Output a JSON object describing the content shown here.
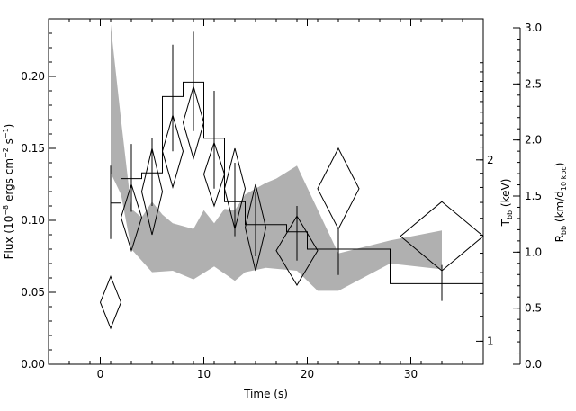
{
  "chart_data": {
    "type": "line",
    "xlabel": "Time (s)",
    "xlim": [
      -5,
      37
    ],
    "ylim": [
      0.0,
      0.24
    ],
    "x_ticks": [
      0,
      10,
      20,
      30
    ],
    "x_tick_labels": [
      "0",
      "10",
      "20",
      "30"
    ],
    "left_axis": {
      "label_main": "Flux (10",
      "label_exp1": "−8",
      "label_mid": " ergs cm",
      "label_exp2": "−2",
      "label_mid2": " s",
      "label_exp3": "−1",
      "label_end": ")",
      "ticks": [
        0.0,
        0.05,
        0.1,
        0.15,
        0.2
      ],
      "tick_labels": [
        "0.00",
        "0.05",
        "0.10",
        "0.15",
        "0.20"
      ]
    },
    "temp_axis": {
      "label_main": "T",
      "label_sub": "bb",
      "label_end": " (keV)",
      "log_scale": true,
      "ticks": [
        1,
        2
      ],
      "tick_labels": [
        "1",
        "2"
      ],
      "flux_equivalent_of_log_ticks": {
        "1": 0.016,
        "2": 0.142
      }
    },
    "radius_axis": {
      "label_main": "R",
      "label_sub": "bb",
      "label_mid": " (km/d",
      "label_sub2": "10 kpc",
      "label_end": ")",
      "range": [
        0.0,
        3.0
      ],
      "ticks": [
        0.0,
        0.5,
        1.0,
        1.5,
        2.0,
        2.5,
        3.0
      ],
      "tick_labels": [
        "0.0",
        "0.5",
        "1.0",
        "1.5",
        "2.0",
        "2.5",
        "3.0"
      ]
    },
    "series": [
      {
        "kind": "histogram-flux",
        "edges": [
          1,
          2,
          3,
          4,
          6,
          8,
          10,
          12,
          14,
          16,
          18,
          20,
          28,
          37
        ],
        "values": [
          0.112,
          0.129,
          0.129,
          0.133,
          0.186,
          0.196,
          0.157,
          0.113,
          0.097,
          0.097,
          0.092,
          0.08,
          0.056
        ],
        "errors": [
          [
            0.087,
            0.138
          ],
          [
            0.106,
            0.153
          ],
          [
            0.106,
            0.153
          ],
          [
            0.11,
            0.157
          ],
          [
            0.148,
            0.222
          ],
          [
            0.162,
            0.231
          ],
          [
            0.122,
            0.19
          ],
          [
            0.089,
            0.14
          ],
          [
            0.075,
            0.12
          ],
          [
            0.075,
            0.12
          ],
          [
            0.072,
            0.11
          ],
          [
            0.062,
            0.095
          ],
          [
            0.044,
            0.069
          ]
        ],
        "error_x": [
          1,
          3,
          3,
          5,
          7,
          9,
          11,
          13,
          15,
          15,
          19,
          23,
          33
        ]
      },
      {
        "kind": "diamonds-temperature",
        "points": [
          {
            "x": 1,
            "y": 0.043,
            "dx": 1.0,
            "dy": 0.018
          },
          {
            "x": 3,
            "y": 0.102,
            "dx": 1.0,
            "dy": 0.023
          },
          {
            "x": 5,
            "y": 0.12,
            "dx": 1.0,
            "dy": 0.03
          },
          {
            "x": 7,
            "y": 0.148,
            "dx": 1.0,
            "dy": 0.025
          },
          {
            "x": 9,
            "y": 0.168,
            "dx": 1.0,
            "dy": 0.025
          },
          {
            "x": 11,
            "y": 0.132,
            "dx": 1.0,
            "dy": 0.022
          },
          {
            "x": 13,
            "y": 0.122,
            "dx": 1.0,
            "dy": 0.028
          },
          {
            "x": 15,
            "y": 0.095,
            "dx": 1.0,
            "dy": 0.03
          },
          {
            "x": 19,
            "y": 0.079,
            "dx": 2.0,
            "dy": 0.024
          },
          {
            "x": 23,
            "y": 0.122,
            "dx": 2.0,
            "dy": 0.028
          },
          {
            "x": 33,
            "y": 0.089,
            "dx": 4.0,
            "dy": 0.024
          }
        ]
      },
      {
        "kind": "band-radius",
        "upper": [
          [
            1,
            0.236
          ],
          [
            2,
            0.17
          ],
          [
            3,
            0.108
          ],
          [
            4,
            0.102
          ],
          [
            5,
            0.113
          ],
          [
            6,
            0.104
          ],
          [
            7,
            0.098
          ],
          [
            9,
            0.094
          ],
          [
            10,
            0.107
          ],
          [
            11,
            0.098
          ],
          [
            12,
            0.108
          ],
          [
            13,
            0.107
          ],
          [
            14,
            0.118
          ],
          [
            15,
            0.122
          ],
          [
            16,
            0.126
          ],
          [
            17,
            0.129
          ],
          [
            19,
            0.138
          ],
          [
            23,
            0.077
          ],
          [
            28,
            0.086
          ],
          [
            33,
            0.093
          ]
        ],
        "lower": [
          [
            33,
            0.066
          ],
          [
            28,
            0.07
          ],
          [
            23,
            0.051
          ],
          [
            21,
            0.051
          ],
          [
            19,
            0.065
          ],
          [
            16,
            0.067
          ],
          [
            14,
            0.064
          ],
          [
            13,
            0.058
          ],
          [
            11,
            0.068
          ],
          [
            9,
            0.059
          ],
          [
            7,
            0.065
          ],
          [
            5,
            0.064
          ],
          [
            3,
            0.08
          ],
          [
            2,
            0.118
          ],
          [
            1,
            0.133
          ]
        ]
      }
    ]
  }
}
